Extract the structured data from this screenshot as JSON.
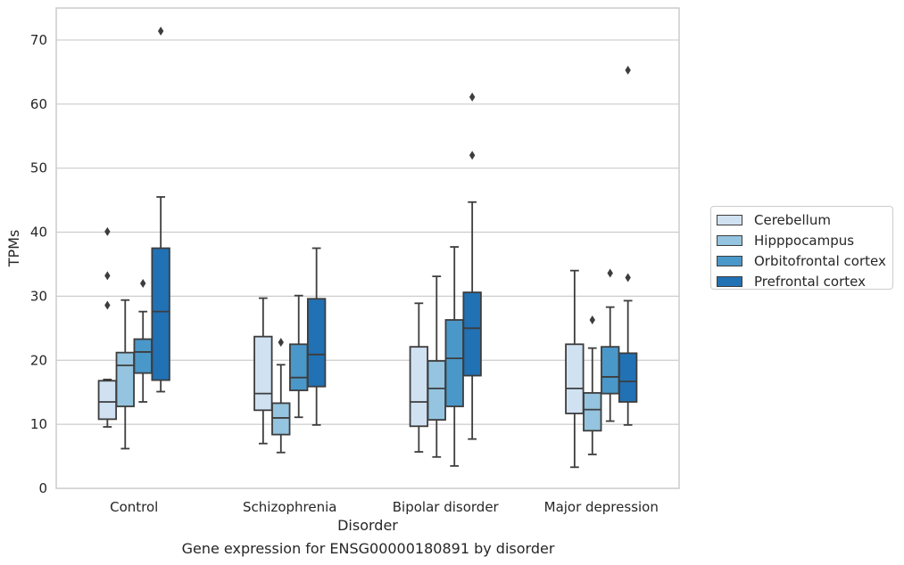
{
  "chart_data": {
    "type": "box",
    "xlabel": "Disorder",
    "ylabel": "TPMs",
    "ylim": [
      0,
      75
    ],
    "yticks": [
      0,
      10,
      20,
      30,
      40,
      50,
      60,
      70
    ],
    "grid": "horizontal",
    "legend_position": "right",
    "categories": [
      "Control",
      "Schizophrenia",
      "Bipolar disorder",
      "Major depression"
    ],
    "series": [
      {
        "name": "Cerebellum",
        "color": "#d0e1f2",
        "boxes": [
          {
            "whislo": 9.6,
            "q1": 10.8,
            "med": 13.5,
            "q3": 16.8,
            "whishi": 17.0,
            "fliers": [
              28.6,
              33.2,
              40.1
            ]
          },
          {
            "whislo": 7.0,
            "q1": 12.2,
            "med": 14.8,
            "q3": 23.7,
            "whishi": 29.7,
            "fliers": []
          },
          {
            "whislo": 5.7,
            "q1": 9.7,
            "med": 13.5,
            "q3": 22.1,
            "whishi": 28.9,
            "fliers": []
          },
          {
            "whislo": 3.3,
            "q1": 11.7,
            "med": 15.6,
            "q3": 22.5,
            "whishi": 34.0,
            "fliers": []
          }
        ]
      },
      {
        "name": "Hipppocampus",
        "color": "#94c4df",
        "boxes": [
          {
            "whislo": 6.2,
            "q1": 12.8,
            "med": 19.2,
            "q3": 21.2,
            "whishi": 29.4,
            "fliers": []
          },
          {
            "whislo": 5.6,
            "q1": 8.4,
            "med": 11.0,
            "q3": 13.3,
            "whishi": 19.3,
            "fliers": [
              22.8
            ]
          },
          {
            "whislo": 4.9,
            "q1": 10.7,
            "med": 15.6,
            "q3": 19.9,
            "whishi": 33.1,
            "fliers": []
          },
          {
            "whislo": 5.3,
            "q1": 9.0,
            "med": 12.3,
            "q3": 14.9,
            "whishi": 21.9,
            "fliers": [
              26.3
            ]
          }
        ]
      },
      {
        "name": "Orbitofrontal cortex",
        "color": "#4a98c9",
        "boxes": [
          {
            "whislo": 13.5,
            "q1": 18.0,
            "med": 21.3,
            "q3": 23.3,
            "whishi": 27.6,
            "fliers": [
              32.0
            ]
          },
          {
            "whislo": 11.1,
            "q1": 15.3,
            "med": 17.3,
            "q3": 22.5,
            "whishi": 30.1,
            "fliers": []
          },
          {
            "whislo": 3.5,
            "q1": 12.8,
            "med": 20.3,
            "q3": 26.3,
            "whishi": 37.7,
            "fliers": []
          },
          {
            "whislo": 10.5,
            "q1": 14.8,
            "med": 17.4,
            "q3": 22.1,
            "whishi": 28.3,
            "fliers": [
              33.6
            ]
          }
        ]
      },
      {
        "name": "Prefrontal cortex",
        "color": "#2171b5",
        "boxes": [
          {
            "whislo": 15.1,
            "q1": 16.9,
            "med": 27.6,
            "q3": 37.5,
            "whishi": 45.5,
            "fliers": [
              71.4
            ]
          },
          {
            "whislo": 9.9,
            "q1": 15.9,
            "med": 20.9,
            "q3": 29.6,
            "whishi": 37.5,
            "fliers": []
          },
          {
            "whislo": 7.7,
            "q1": 17.6,
            "med": 25.0,
            "q3": 30.6,
            "whishi": 44.7,
            "fliers": [
              52.0,
              61.1
            ]
          },
          {
            "whislo": 9.9,
            "q1": 13.5,
            "med": 16.7,
            "q3": 21.1,
            "whishi": 29.3,
            "fliers": [
              32.9,
              65.3
            ]
          }
        ]
      }
    ]
  },
  "caption": "Gene expression for ENSG00000180891 by disorder"
}
